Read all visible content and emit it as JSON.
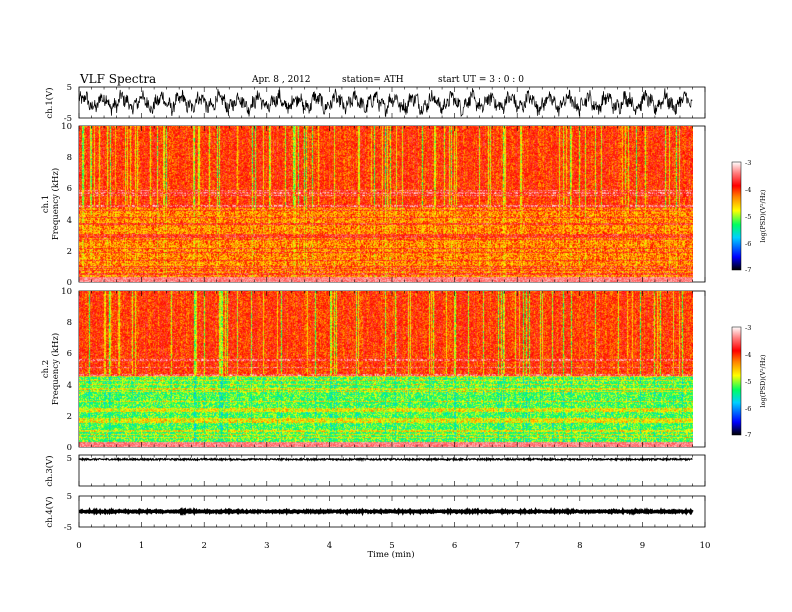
{
  "header": {
    "title": "VLF  Spectra",
    "date": "Apr. 8  , 2012",
    "station": "station= ATH",
    "start": "start  UT  =    3 : 0  : 0"
  },
  "chart_data": [
    {
      "type": "line",
      "ylabel": "ch.1(V)",
      "ylim": [
        -5,
        5
      ],
      "yticks": [
        "5",
        "-5"
      ],
      "description_of_signal": "noisy waveform oscillating mostly between about -3 and +3 V over 0–9.8 min",
      "amplitude": 3
    },
    {
      "type": "heatmap",
      "channel_label": "ch.1",
      "ylabel": "Frequency  (kHz)",
      "ylim": [
        0,
        10
      ],
      "yticks": [
        "0",
        "2",
        "4",
        "6",
        "8",
        "10"
      ],
      "colorbar": {
        "label": "log(PSD)(V²/Hz)",
        "ticks": [
          "-3",
          "-4",
          "-5",
          "-6",
          "-7"
        ],
        "range": [
          -7,
          -3
        ]
      },
      "levels": {
        "high_band_kHz": [
          4.8,
          10
        ],
        "high_band_logPSD": -4.0,
        "low_band_logPSD": -4.3
      }
    },
    {
      "type": "heatmap",
      "channel_label": "ch.2",
      "ylabel": "Frequency  (kHz)",
      "ylim": [
        0,
        10
      ],
      "yticks": [
        "0",
        "2",
        "4",
        "6",
        "8",
        "10"
      ],
      "colorbar": {
        "label": "log(PSD)(V²/Hz)",
        "ticks": [
          "-3",
          "-4",
          "-5",
          "-6",
          "-7"
        ],
        "range": [
          -7,
          -3
        ]
      },
      "levels": {
        "high_band_kHz": [
          4.6,
          10
        ],
        "high_band_logPSD": -4.0,
        "low_band_logPSD": -5.2
      }
    },
    {
      "type": "line",
      "ylabel": "ch.3(V)",
      "ylim": [
        -5,
        5
      ],
      "yticks": [
        "5"
      ],
      "constant_value": 5
    },
    {
      "type": "line",
      "ylabel": "ch.4(V)",
      "ylim": [
        -5,
        5
      ],
      "yticks": [
        "5",
        "-5"
      ],
      "constant_value": 0
    }
  ],
  "xaxis": {
    "label": "Time  (min)",
    "xlim": [
      0,
      10
    ],
    "ticks": [
      "0",
      "1",
      "2",
      "3",
      "4",
      "5",
      "6",
      "7",
      "8",
      "9",
      "10"
    ],
    "data_end_min": 9.8
  },
  "colors": {
    "scale": [
      "#000000",
      "#0000ff",
      "#00d0ff",
      "#00ff60",
      "#ffff00",
      "#ff8000",
      "#ff0000",
      "#ff8080",
      "#ffffff"
    ],
    "dominant_high": "#ff2a00",
    "dominant_ch1_low": "#ffa500",
    "dominant_ch2_low": "#10e870"
  }
}
